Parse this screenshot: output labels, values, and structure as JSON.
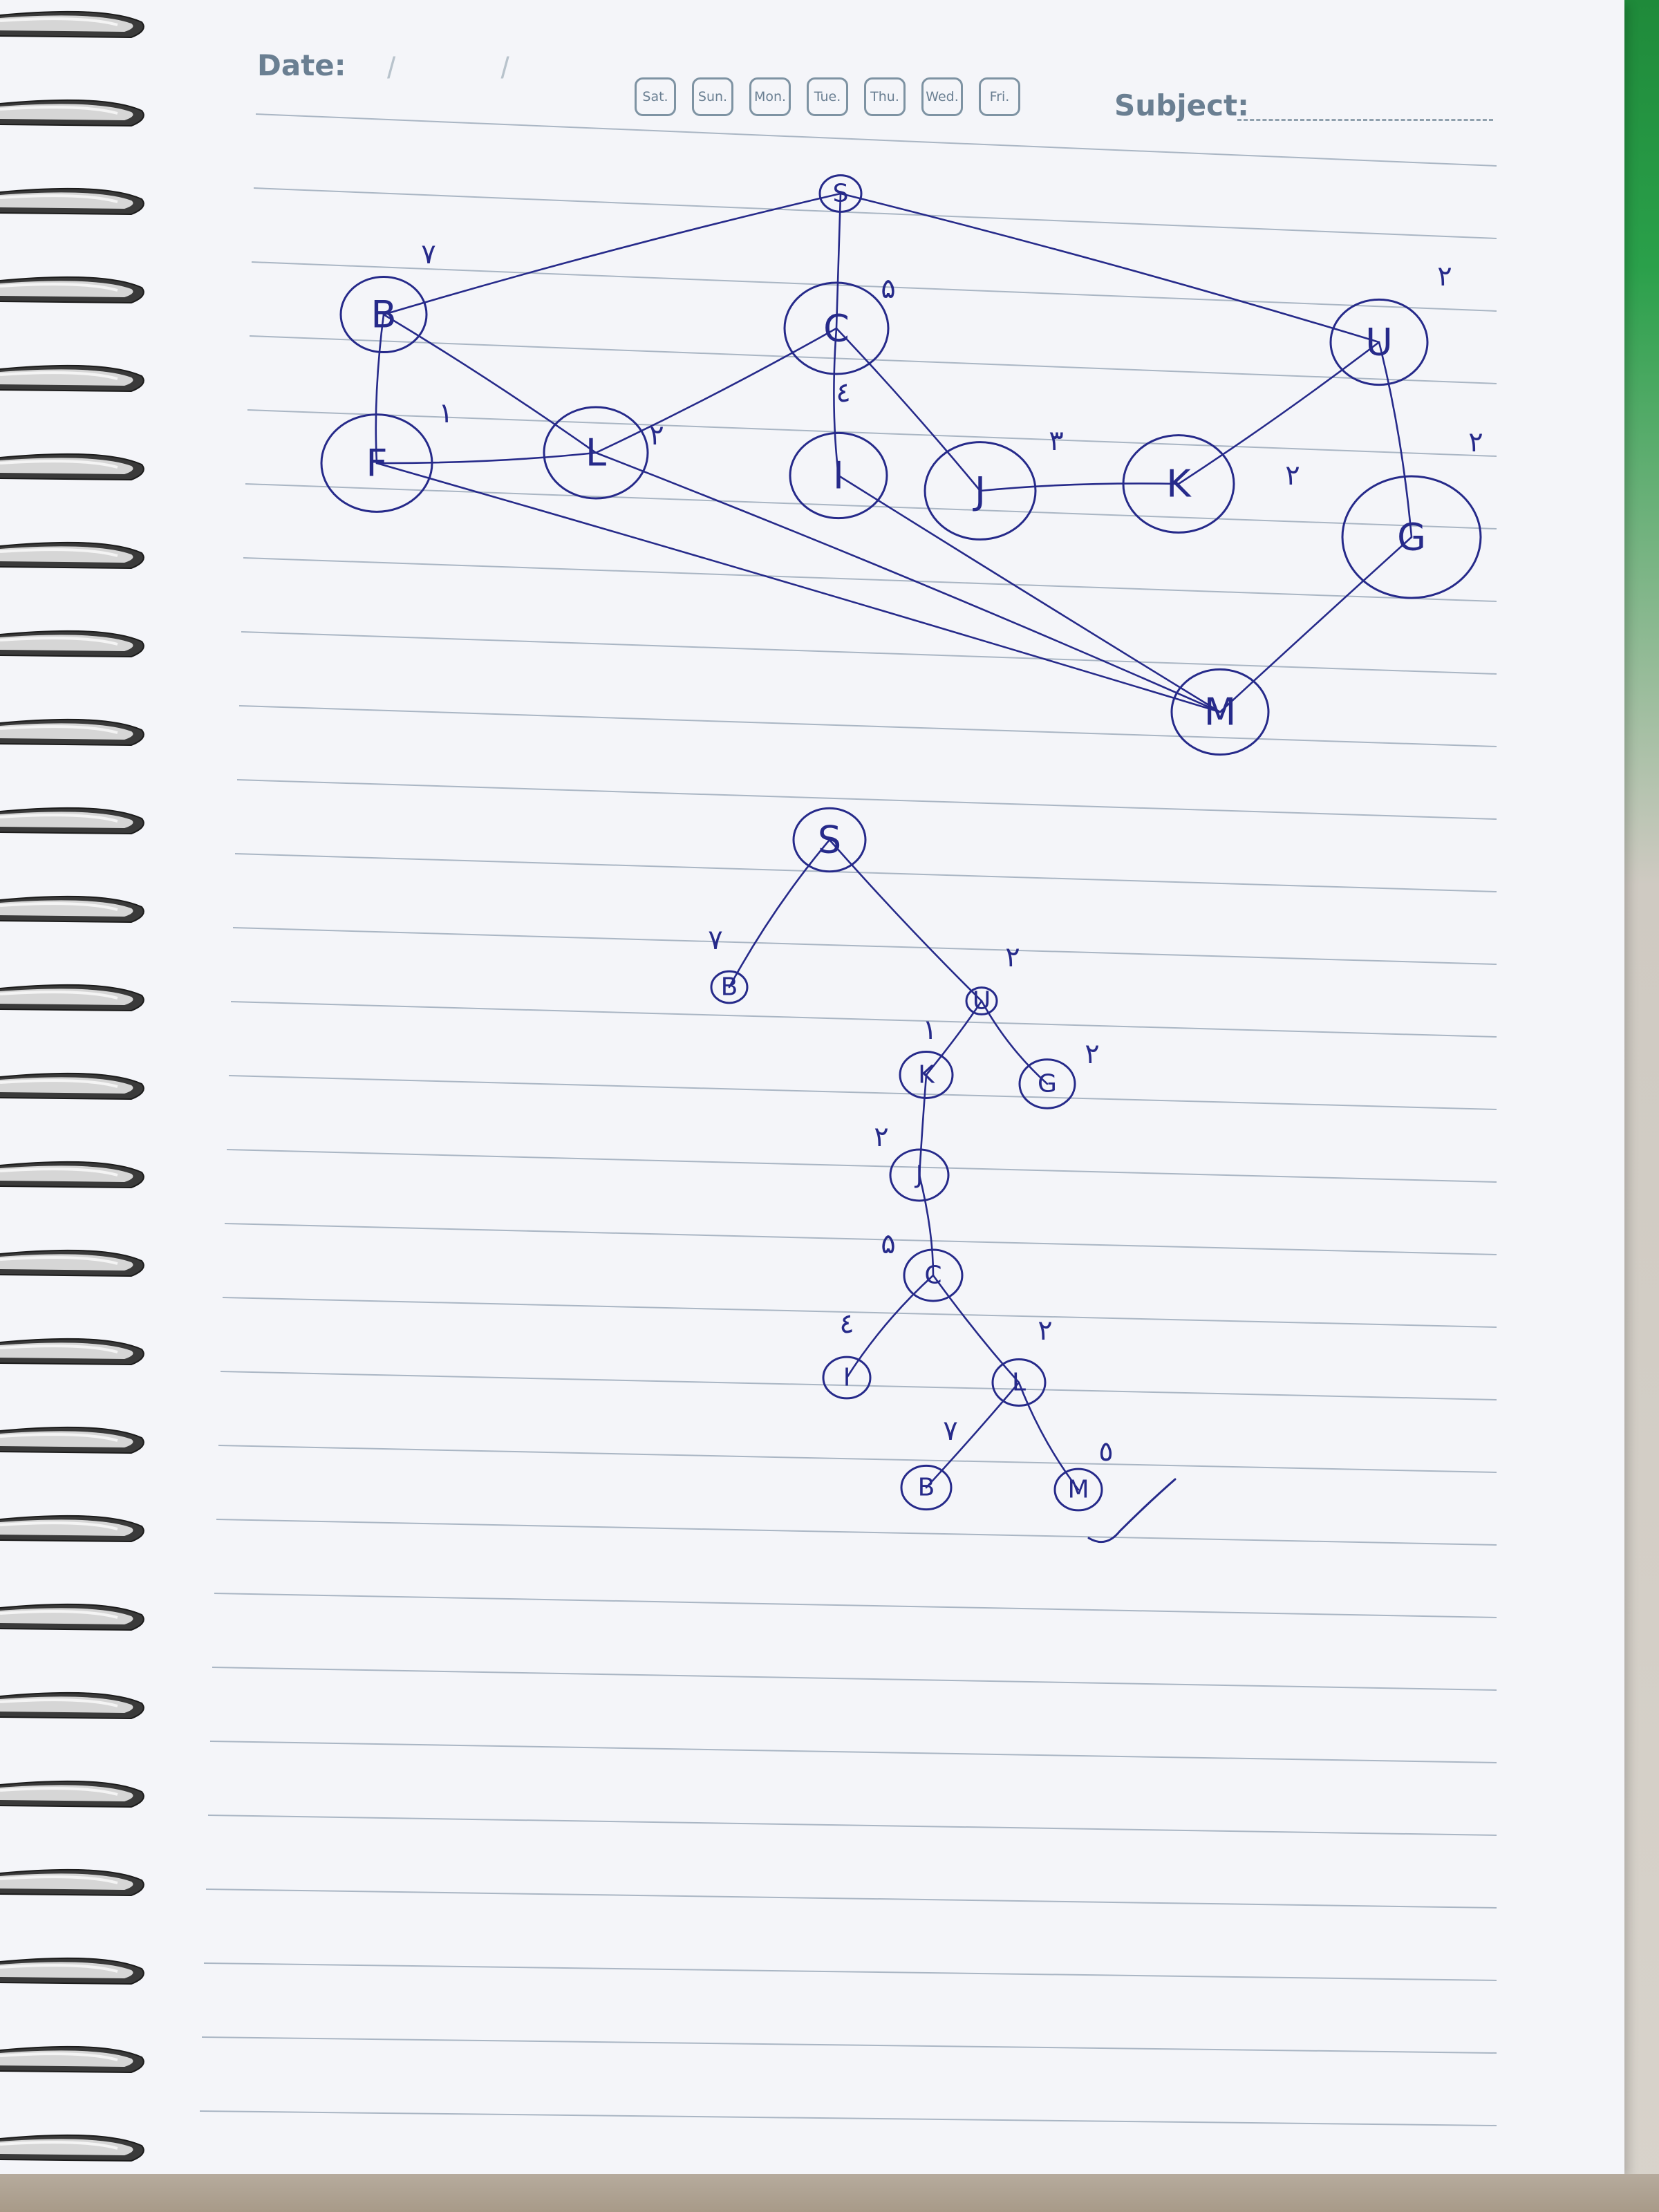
{
  "header": {
    "date_label": "Date:",
    "date_slashes": "/ /",
    "days": [
      "Sat.",
      "Sun.",
      "Mon.",
      "Tue.",
      "Thu.",
      "Wed.",
      "Fri."
    ],
    "subject_label": "Subject:"
  },
  "graph": {
    "nodes": [
      {
        "id": "S",
        "label": "S"
      },
      {
        "id": "B",
        "label": "B"
      },
      {
        "id": "C",
        "label": "C"
      },
      {
        "id": "U",
        "label": "U"
      },
      {
        "id": "F",
        "label": "F"
      },
      {
        "id": "L",
        "label": "L"
      },
      {
        "id": "I",
        "label": "I"
      },
      {
        "id": "J",
        "label": "J"
      },
      {
        "id": "K",
        "label": "K"
      },
      {
        "id": "G",
        "label": "G"
      },
      {
        "id": "M",
        "label": "M"
      }
    ],
    "edges": [
      {
        "from": "S",
        "to": "B"
      },
      {
        "from": "S",
        "to": "C"
      },
      {
        "from": "S",
        "to": "U"
      },
      {
        "from": "B",
        "to": "F"
      },
      {
        "from": "B",
        "to": "L"
      },
      {
        "from": "F",
        "to": "L"
      },
      {
        "from": "F",
        "to": "M"
      },
      {
        "from": "L",
        "to": "C"
      },
      {
        "from": "L",
        "to": "M"
      },
      {
        "from": "C",
        "to": "I"
      },
      {
        "from": "C",
        "to": "J"
      },
      {
        "from": "I",
        "to": "M"
      },
      {
        "from": "J",
        "to": "K"
      },
      {
        "from": "K",
        "to": "U"
      },
      {
        "from": "U",
        "to": "G"
      },
      {
        "from": "G",
        "to": "M"
      }
    ],
    "weights": [
      {
        "text": "٧"
      },
      {
        "text": "۵"
      },
      {
        "text": "٢"
      },
      {
        "text": "٢"
      },
      {
        "text": "١"
      },
      {
        "text": "٢"
      },
      {
        "text": "٤"
      },
      {
        "text": "٣"
      },
      {
        "text": "٢"
      }
    ]
  },
  "tree": {
    "nodes": [
      {
        "id": "S",
        "label": "S"
      },
      {
        "id": "B",
        "label": "B"
      },
      {
        "id": "U",
        "label": "U"
      },
      {
        "id": "K",
        "label": "K"
      },
      {
        "id": "G",
        "label": "G"
      },
      {
        "id": "J",
        "label": "J"
      },
      {
        "id": "C",
        "label": "C"
      },
      {
        "id": "I",
        "label": "I"
      },
      {
        "id": "L",
        "label": "L"
      },
      {
        "id": "B2",
        "label": "B"
      },
      {
        "id": "M",
        "label": "M"
      }
    ],
    "edges": [
      {
        "from": "S",
        "to": "B"
      },
      {
        "from": "S",
        "to": "U"
      },
      {
        "from": "U",
        "to": "K"
      },
      {
        "from": "U",
        "to": "G"
      },
      {
        "from": "K",
        "to": "J"
      },
      {
        "from": "J",
        "to": "C"
      },
      {
        "from": "C",
        "to": "I"
      },
      {
        "from": "C",
        "to": "L"
      },
      {
        "from": "L",
        "to": "B2"
      },
      {
        "from": "L",
        "to": "M"
      }
    ],
    "weights": [
      {
        "text": "٧"
      },
      {
        "text": "٢"
      },
      {
        "text": "١"
      },
      {
        "text": "٢"
      },
      {
        "text": "٢"
      },
      {
        "text": "۵"
      },
      {
        "text": "٤"
      },
      {
        "text": "٢"
      },
      {
        "text": "٧"
      },
      {
        "text": "٥"
      }
    ]
  }
}
